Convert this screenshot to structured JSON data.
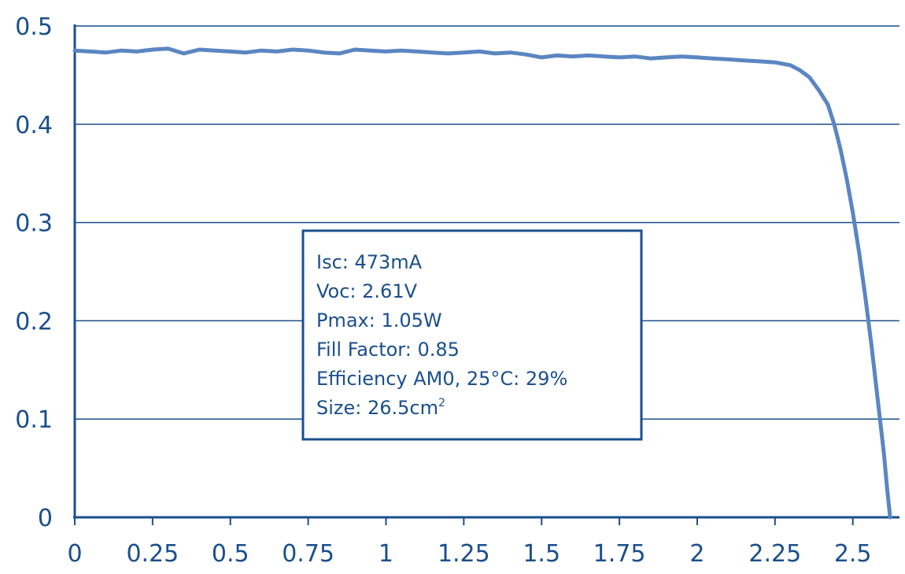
{
  "chart_data": {
    "type": "line",
    "title": "",
    "xlabel": "",
    "ylabel": "",
    "xlim": [
      0,
      2.65
    ],
    "ylim": [
      0,
      0.5
    ],
    "x_ticks": [
      {
        "value": 0,
        "label": "0"
      },
      {
        "value": 0.25,
        "label": "0.25"
      },
      {
        "value": 0.5,
        "label": "0.5"
      },
      {
        "value": 0.75,
        "label": "0.75"
      },
      {
        "value": 1,
        "label": "1"
      },
      {
        "value": 1.25,
        "label": "1.25"
      },
      {
        "value": 1.5,
        "label": "1.5"
      },
      {
        "value": 1.75,
        "label": "1.75"
      },
      {
        "value": 2,
        "label": "2"
      },
      {
        "value": 2.25,
        "label": "2.25"
      },
      {
        "value": 2.5,
        "label": "2.5"
      }
    ],
    "y_ticks": [
      {
        "value": 0,
        "label": "0"
      },
      {
        "value": 0.1,
        "label": "0.1"
      },
      {
        "value": 0.2,
        "label": "0.2"
      },
      {
        "value": 0.3,
        "label": "0.3"
      },
      {
        "value": 0.4,
        "label": "0.4"
      },
      {
        "value": 0.5,
        "label": "0.5"
      }
    ],
    "grid": "horizontal",
    "series": [
      {
        "x": [
          0,
          0.05,
          0.1,
          0.15,
          0.2,
          0.25,
          0.3,
          0.35,
          0.4,
          0.45,
          0.5,
          0.55,
          0.6,
          0.65,
          0.7,
          0.75,
          0.8,
          0.85,
          0.9,
          0.95,
          1.0,
          1.05,
          1.1,
          1.15,
          1.2,
          1.25,
          1.3,
          1.35,
          1.4,
          1.45,
          1.5,
          1.55,
          1.6,
          1.65,
          1.7,
          1.75,
          1.8,
          1.85,
          1.9,
          1.95,
          2.0,
          2.05,
          2.1,
          2.15,
          2.2,
          2.25,
          2.3,
          2.33,
          2.36,
          2.39,
          2.42,
          2.44,
          2.46,
          2.48,
          2.5,
          2.52,
          2.54,
          2.56,
          2.58,
          2.6,
          2.61,
          2.62
        ],
        "y": [
          0.475,
          0.474,
          0.473,
          0.475,
          0.474,
          0.476,
          0.477,
          0.472,
          0.476,
          0.475,
          0.474,
          0.473,
          0.475,
          0.474,
          0.476,
          0.475,
          0.473,
          0.472,
          0.476,
          0.475,
          0.474,
          0.475,
          0.474,
          0.473,
          0.472,
          0.473,
          0.474,
          0.472,
          0.473,
          0.471,
          0.468,
          0.47,
          0.469,
          0.47,
          0.469,
          0.468,
          0.469,
          0.467,
          0.468,
          0.469,
          0.468,
          0.467,
          0.466,
          0.465,
          0.464,
          0.463,
          0.46,
          0.455,
          0.448,
          0.435,
          0.42,
          0.4,
          0.375,
          0.345,
          0.31,
          0.27,
          0.225,
          0.175,
          0.12,
          0.065,
          0.03,
          0
        ],
        "color": "#5a86c2"
      }
    ]
  },
  "info_box": {
    "lines": [
      "Isc: 473mA",
      "Voc: 2.61V",
      "Pmax: 1.05W",
      "Fill Factor: 0.85",
      "Efficiency AM0, 25°C: 29%"
    ],
    "size_label": "Size: 26.5cm",
    "size_superscript": "2"
  },
  "colors": {
    "axis": "#1a4f8c",
    "text": "#1a4f8c",
    "grid": "#1a4f8c",
    "line": "#5a86c2",
    "box_border": "#1a4f8c"
  }
}
